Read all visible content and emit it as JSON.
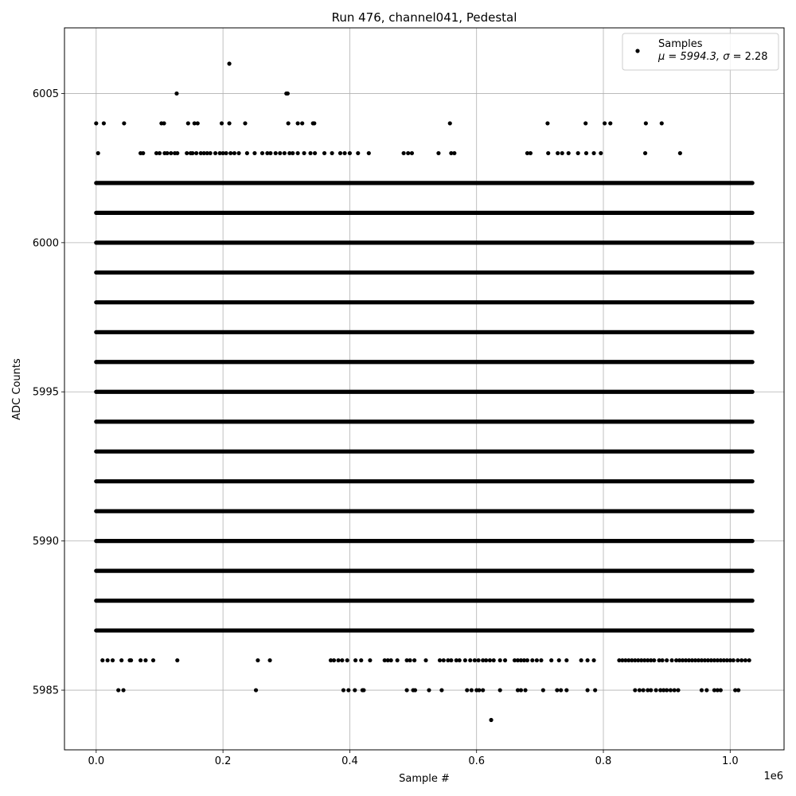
{
  "chart_data": {
    "type": "scatter",
    "title": "Run 476, channel041, Pedestal",
    "xlabel": "Sample #",
    "ylabel": "ADC Counts",
    "x_offset_label": "1e6",
    "xlim": [
      -50000,
      1085000
    ],
    "ylim": [
      5983,
      6007.2
    ],
    "x_ticks": [
      0,
      200000,
      400000,
      600000,
      800000,
      1000000
    ],
    "x_tick_labels": [
      "0.0",
      "0.2",
      "0.4",
      "0.6",
      "0.8",
      "1.0"
    ],
    "y_ticks": [
      5985,
      5990,
      5995,
      6000,
      6005
    ],
    "y_tick_labels": [
      "5985",
      "5990",
      "5995",
      "6000",
      "6005"
    ],
    "grid": true,
    "marker_color": "#000000",
    "x_range": [
      0,
      1035000
    ],
    "legend": {
      "position": "top-right",
      "entry": "Samples",
      "stat_prefix": "μ = 5994.3, ",
      "stat_sigma": "σ",
      "stat_suffix": " = 2.28"
    },
    "stats": {
      "mean": 5994.3,
      "sigma": 2.28
    },
    "dense_levels": [
      5987,
      5988,
      5989,
      5990,
      5991,
      5992,
      5993,
      5994,
      5995,
      5996,
      5997,
      5998,
      5999,
      6000,
      6001,
      6002
    ],
    "sparse_points": [
      {
        "y": 6006,
        "x": [
          210000
        ]
      },
      {
        "y": 6005,
        "x": [
          127000,
          300000,
          302000
        ]
      },
      {
        "y": 6004,
        "x": [
          0,
          12000,
          44000,
          103000,
          107000,
          145000,
          155000,
          160000,
          198000,
          210000,
          235000,
          303000,
          318000,
          325000,
          342000,
          344000,
          558000,
          712000,
          772000,
          802000,
          811000,
          867000,
          892000
        ]
      },
      {
        "y": 6003,
        "x": [
          3000,
          70000,
          74000,
          95000,
          100000,
          108000,
          112000,
          118000,
          124000,
          128000,
          143000,
          149000,
          152000,
          158000,
          165000,
          170000,
          175000,
          180000,
          188000,
          195000,
          200000,
          205000,
          212000,
          218000,
          225000,
          238000,
          250000,
          262000,
          270000,
          275000,
          283000,
          290000,
          297000,
          305000,
          310000,
          318000,
          328000,
          338000,
          345000,
          360000,
          372000,
          385000,
          392000,
          400000,
          413000,
          430000,
          485000,
          492000,
          498000,
          540000,
          560000,
          565000,
          680000,
          685000,
          713000,
          728000,
          735000,
          745000,
          760000,
          773000,
          785000,
          796000,
          866000,
          921000
        ]
      },
      {
        "y": 5986,
        "x": [
          10000,
          18000,
          26000,
          40000,
          53000,
          55000,
          70000,
          78000,
          90000,
          128000,
          255000,
          274000,
          370000,
          375000,
          382000,
          388000,
          396000,
          409000,
          418000,
          432000,
          455000,
          460000,
          465000,
          475000,
          490000,
          495000,
          502000,
          520000,
          542000,
          548000,
          555000,
          560000,
          568000,
          573000,
          582000,
          590000,
          597000,
          603000,
          610000,
          615000,
          621000,
          627000,
          637000,
          645000,
          660000,
          665000,
          670000,
          675000,
          680000,
          688000,
          695000,
          702000,
          718000,
          730000,
          742000,
          765000,
          775000,
          785000,
          825000,
          830000,
          835000,
          840000,
          845000,
          850000,
          855000,
          860000,
          865000,
          870000,
          875000,
          880000,
          888000,
          893000,
          900000,
          908000,
          915000,
          920000,
          925000,
          930000,
          935000,
          940000,
          945000,
          950000,
          955000,
          960000,
          965000,
          970000,
          975000,
          980000,
          985000,
          990000,
          995000,
          1000000,
          1005000,
          1012000,
          1018000,
          1024000,
          1030000
        ]
      },
      {
        "y": 5985,
        "x": [
          35000,
          43000,
          252000,
          390000,
          398000,
          408000,
          420000,
          422000,
          490000,
          500000,
          503000,
          525000,
          545000,
          585000,
          592000,
          600000,
          604000,
          610000,
          637000,
          665000,
          670000,
          677000,
          705000,
          727000,
          733000,
          742000,
          775000,
          787000,
          850000,
          857000,
          863000,
          870000,
          875000,
          883000,
          890000,
          895000,
          900000,
          906000,
          912000,
          918000,
          955000,
          963000,
          975000,
          980000,
          985000,
          1008000,
          1013000
        ]
      },
      {
        "y": 5984,
        "x": [
          623000
        ]
      }
    ]
  }
}
